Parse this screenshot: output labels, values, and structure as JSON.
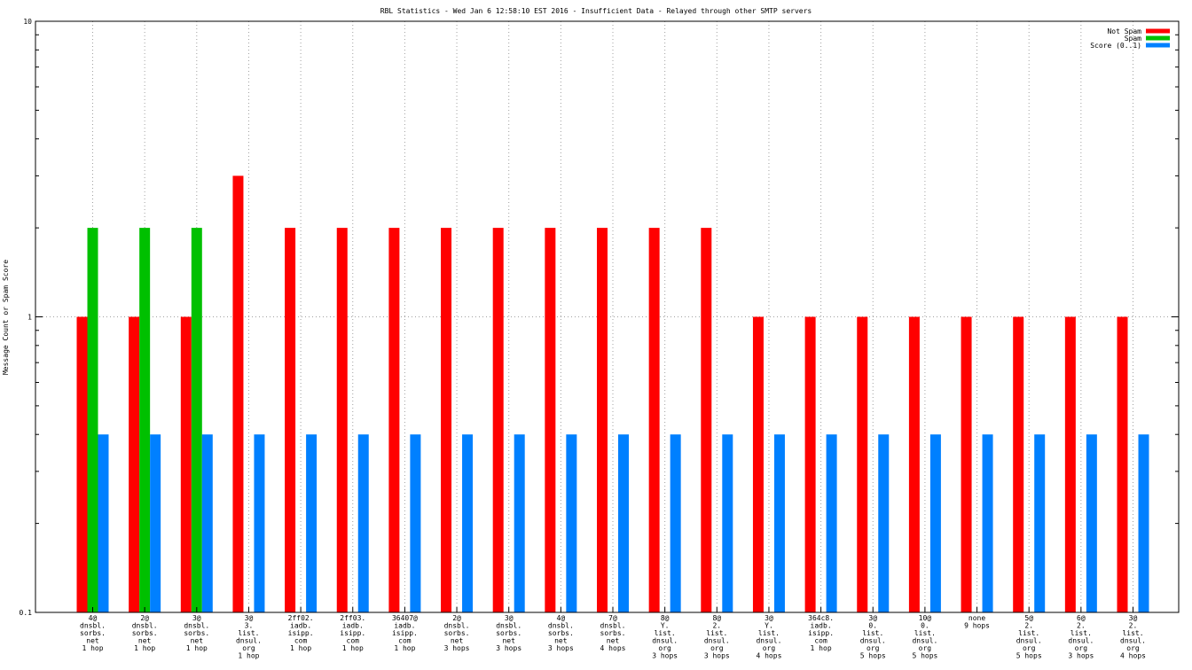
{
  "chart_data": {
    "type": "bar",
    "title": "RBL Statistics - Wed Jan  6 12:58:10 EST 2016 - Insufficient Data - Relayed through other SMTP servers",
    "xlabel": "",
    "ylabel": "Message Count or Spam Score",
    "yscale": "log",
    "ylim": [
      0.1,
      10
    ],
    "yticks": [
      "0.1",
      "1",
      "10"
    ],
    "grid": true,
    "legend_position": "top-right",
    "categories": [
      [
        "4@",
        "dnsbl.",
        "sorbs.",
        "net",
        "1 hop"
      ],
      [
        "2@",
        "dnsbl.",
        "sorbs.",
        "net",
        "1 hop"
      ],
      [
        "3@",
        "dnsbl.",
        "sorbs.",
        "net",
        "1 hop"
      ],
      [
        "3@",
        "3.",
        "list.",
        "dnsul.",
        "org",
        "1 hop"
      ],
      [
        "2ff02.",
        "iadb.",
        "isipp.",
        "com",
        "1 hop"
      ],
      [
        "2ff03.",
        "iadb.",
        "isipp.",
        "com",
        "1 hop"
      ],
      [
        "36407@",
        "iadb.",
        "isipp.",
        "com",
        "1 hop"
      ],
      [
        "2@",
        "dnsbl.",
        "sorbs.",
        "net",
        "3 hops"
      ],
      [
        "3@",
        "dnsbl.",
        "sorbs.",
        "net",
        "3 hops"
      ],
      [
        "4@",
        "dnsbl.",
        "sorbs.",
        "net",
        "3 hops"
      ],
      [
        "7@",
        "dnsbl.",
        "sorbs.",
        "net",
        "4 hops"
      ],
      [
        "8@",
        "Y.",
        "list.",
        "dnsul.",
        "org",
        "3 hops"
      ],
      [
        "8@",
        "2.",
        "list.",
        "dnsul.",
        "org",
        "3 hops"
      ],
      [
        "3@",
        "Y.",
        "list.",
        "dnsul.",
        "org",
        "4 hops"
      ],
      [
        "364c8.",
        "iadb.",
        "isipp.",
        "com",
        "1 hop"
      ],
      [
        "3@",
        "0.",
        "list.",
        "dnsul.",
        "org",
        "5 hops"
      ],
      [
        "10@",
        "0.",
        "list.",
        "dnsul.",
        "org",
        "5 hops"
      ],
      [
        "none",
        "9 hops"
      ],
      [
        "5@",
        "2.",
        "list.",
        "dnsul.",
        "org",
        "5 hops"
      ],
      [
        "6@",
        "2.",
        "list.",
        "dnsul.",
        "org",
        "3 hops"
      ],
      [
        "3@",
        "2.",
        "list.",
        "dnsul.",
        "org",
        "4 hops"
      ]
    ],
    "series": [
      {
        "name": "Not Spam",
        "color": "#ff0000",
        "values": [
          1,
          1,
          1,
          3,
          2,
          2,
          2,
          2,
          2,
          2,
          2,
          2,
          2,
          1,
          1,
          1,
          1,
          1,
          1,
          1,
          1
        ]
      },
      {
        "name": "Spam",
        "color": "#00c000",
        "values": [
          2,
          2,
          2,
          0,
          0,
          0,
          0,
          0,
          0,
          0,
          0,
          0,
          0,
          0,
          0,
          0,
          0,
          0,
          0,
          0,
          0
        ]
      },
      {
        "name": "Score (0..1)",
        "color": "#0080ff",
        "values": [
          0.4,
          0.4,
          0.4,
          0.4,
          0.4,
          0.4,
          0.4,
          0.4,
          0.4,
          0.4,
          0.4,
          0.4,
          0.4,
          0.4,
          0.4,
          0.4,
          0.4,
          0.4,
          0.4,
          0.4,
          0.4
        ]
      }
    ]
  }
}
